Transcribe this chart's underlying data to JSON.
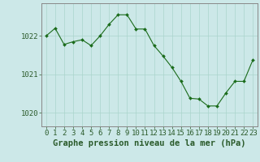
{
  "hours": [
    0,
    1,
    2,
    3,
    4,
    5,
    6,
    7,
    8,
    9,
    10,
    11,
    12,
    13,
    14,
    15,
    16,
    17,
    18,
    19,
    20,
    21,
    22,
    23
  ],
  "pressure": [
    1022.0,
    1022.2,
    1021.78,
    1021.85,
    1021.9,
    1021.75,
    1022.0,
    1022.3,
    1022.55,
    1022.55,
    1022.18,
    1022.18,
    1021.75,
    1021.48,
    1021.18,
    1020.82,
    1020.38,
    1020.36,
    1020.18,
    1020.18,
    1020.52,
    1020.82,
    1020.82,
    1021.38
  ],
  "line_color": "#1a6b1a",
  "marker_color": "#1a6b1a",
  "bg_color": "#cce8e8",
  "grid_color": "#aad4cc",
  "axis_color": "#2a5a2a",
  "border_color": "#888888",
  "ylabel_vals": [
    1020,
    1021,
    1022
  ],
  "ylim": [
    1019.65,
    1022.85
  ],
  "xlim": [
    -0.5,
    23.5
  ],
  "xlabel": "Graphe pression niveau de la mer (hPa)",
  "xlabel_fontsize": 7.5,
  "tick_fontsize": 6.5,
  "figsize": [
    3.2,
    2.0
  ],
  "dpi": 100
}
